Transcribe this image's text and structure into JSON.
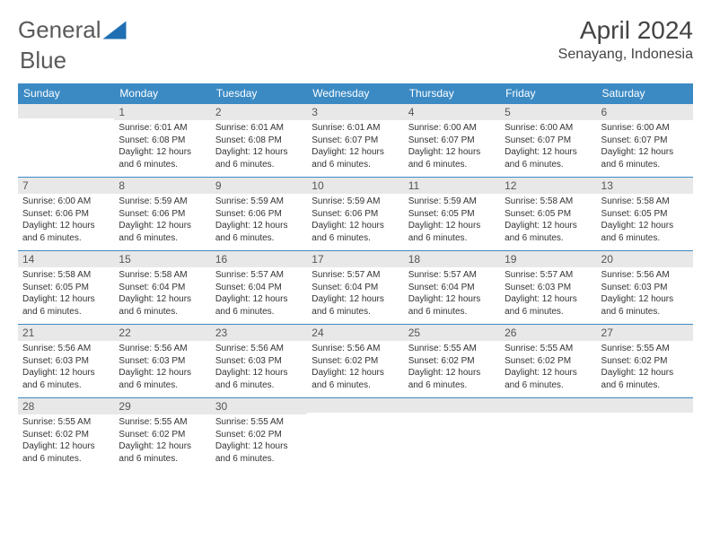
{
  "logo": {
    "text1": "General",
    "text2": "Blue"
  },
  "title": "April 2024",
  "location": "Senayang, Indonesia",
  "colors": {
    "header_bg": "#3b8ac4",
    "header_text": "#ffffff",
    "daynum_bg": "#e8e8e8",
    "border": "#3b8ac4",
    "body_text": "#333333",
    "title_text": "#444444"
  },
  "weekdays": [
    "Sunday",
    "Monday",
    "Tuesday",
    "Wednesday",
    "Thursday",
    "Friday",
    "Saturday"
  ],
  "weeks": [
    [
      {
        "day": "",
        "lines": []
      },
      {
        "day": "1",
        "lines": [
          "Sunrise: 6:01 AM",
          "Sunset: 6:08 PM",
          "Daylight: 12 hours and 6 minutes."
        ]
      },
      {
        "day": "2",
        "lines": [
          "Sunrise: 6:01 AM",
          "Sunset: 6:08 PM",
          "Daylight: 12 hours and 6 minutes."
        ]
      },
      {
        "day": "3",
        "lines": [
          "Sunrise: 6:01 AM",
          "Sunset: 6:07 PM",
          "Daylight: 12 hours and 6 minutes."
        ]
      },
      {
        "day": "4",
        "lines": [
          "Sunrise: 6:00 AM",
          "Sunset: 6:07 PM",
          "Daylight: 12 hours and 6 minutes."
        ]
      },
      {
        "day": "5",
        "lines": [
          "Sunrise: 6:00 AM",
          "Sunset: 6:07 PM",
          "Daylight: 12 hours and 6 minutes."
        ]
      },
      {
        "day": "6",
        "lines": [
          "Sunrise: 6:00 AM",
          "Sunset: 6:07 PM",
          "Daylight: 12 hours and 6 minutes."
        ]
      }
    ],
    [
      {
        "day": "7",
        "lines": [
          "Sunrise: 6:00 AM",
          "Sunset: 6:06 PM",
          "Daylight: 12 hours and 6 minutes."
        ]
      },
      {
        "day": "8",
        "lines": [
          "Sunrise: 5:59 AM",
          "Sunset: 6:06 PM",
          "Daylight: 12 hours and 6 minutes."
        ]
      },
      {
        "day": "9",
        "lines": [
          "Sunrise: 5:59 AM",
          "Sunset: 6:06 PM",
          "Daylight: 12 hours and 6 minutes."
        ]
      },
      {
        "day": "10",
        "lines": [
          "Sunrise: 5:59 AM",
          "Sunset: 6:06 PM",
          "Daylight: 12 hours and 6 minutes."
        ]
      },
      {
        "day": "11",
        "lines": [
          "Sunrise: 5:59 AM",
          "Sunset: 6:05 PM",
          "Daylight: 12 hours and 6 minutes."
        ]
      },
      {
        "day": "12",
        "lines": [
          "Sunrise: 5:58 AM",
          "Sunset: 6:05 PM",
          "Daylight: 12 hours and 6 minutes."
        ]
      },
      {
        "day": "13",
        "lines": [
          "Sunrise: 5:58 AM",
          "Sunset: 6:05 PM",
          "Daylight: 12 hours and 6 minutes."
        ]
      }
    ],
    [
      {
        "day": "14",
        "lines": [
          "Sunrise: 5:58 AM",
          "Sunset: 6:05 PM",
          "Daylight: 12 hours and 6 minutes."
        ]
      },
      {
        "day": "15",
        "lines": [
          "Sunrise: 5:58 AM",
          "Sunset: 6:04 PM",
          "Daylight: 12 hours and 6 minutes."
        ]
      },
      {
        "day": "16",
        "lines": [
          "Sunrise: 5:57 AM",
          "Sunset: 6:04 PM",
          "Daylight: 12 hours and 6 minutes."
        ]
      },
      {
        "day": "17",
        "lines": [
          "Sunrise: 5:57 AM",
          "Sunset: 6:04 PM",
          "Daylight: 12 hours and 6 minutes."
        ]
      },
      {
        "day": "18",
        "lines": [
          "Sunrise: 5:57 AM",
          "Sunset: 6:04 PM",
          "Daylight: 12 hours and 6 minutes."
        ]
      },
      {
        "day": "19",
        "lines": [
          "Sunrise: 5:57 AM",
          "Sunset: 6:03 PM",
          "Daylight: 12 hours and 6 minutes."
        ]
      },
      {
        "day": "20",
        "lines": [
          "Sunrise: 5:56 AM",
          "Sunset: 6:03 PM",
          "Daylight: 12 hours and 6 minutes."
        ]
      }
    ],
    [
      {
        "day": "21",
        "lines": [
          "Sunrise: 5:56 AM",
          "Sunset: 6:03 PM",
          "Daylight: 12 hours and 6 minutes."
        ]
      },
      {
        "day": "22",
        "lines": [
          "Sunrise: 5:56 AM",
          "Sunset: 6:03 PM",
          "Daylight: 12 hours and 6 minutes."
        ]
      },
      {
        "day": "23",
        "lines": [
          "Sunrise: 5:56 AM",
          "Sunset: 6:03 PM",
          "Daylight: 12 hours and 6 minutes."
        ]
      },
      {
        "day": "24",
        "lines": [
          "Sunrise: 5:56 AM",
          "Sunset: 6:02 PM",
          "Daylight: 12 hours and 6 minutes."
        ]
      },
      {
        "day": "25",
        "lines": [
          "Sunrise: 5:55 AM",
          "Sunset: 6:02 PM",
          "Daylight: 12 hours and 6 minutes."
        ]
      },
      {
        "day": "26",
        "lines": [
          "Sunrise: 5:55 AM",
          "Sunset: 6:02 PM",
          "Daylight: 12 hours and 6 minutes."
        ]
      },
      {
        "day": "27",
        "lines": [
          "Sunrise: 5:55 AM",
          "Sunset: 6:02 PM",
          "Daylight: 12 hours and 6 minutes."
        ]
      }
    ],
    [
      {
        "day": "28",
        "lines": [
          "Sunrise: 5:55 AM",
          "Sunset: 6:02 PM",
          "Daylight: 12 hours and 6 minutes."
        ]
      },
      {
        "day": "29",
        "lines": [
          "Sunrise: 5:55 AM",
          "Sunset: 6:02 PM",
          "Daylight: 12 hours and 6 minutes."
        ]
      },
      {
        "day": "30",
        "lines": [
          "Sunrise: 5:55 AM",
          "Sunset: 6:02 PM",
          "Daylight: 12 hours and 6 minutes."
        ]
      },
      {
        "day": "",
        "lines": []
      },
      {
        "day": "",
        "lines": []
      },
      {
        "day": "",
        "lines": []
      },
      {
        "day": "",
        "lines": []
      }
    ]
  ]
}
